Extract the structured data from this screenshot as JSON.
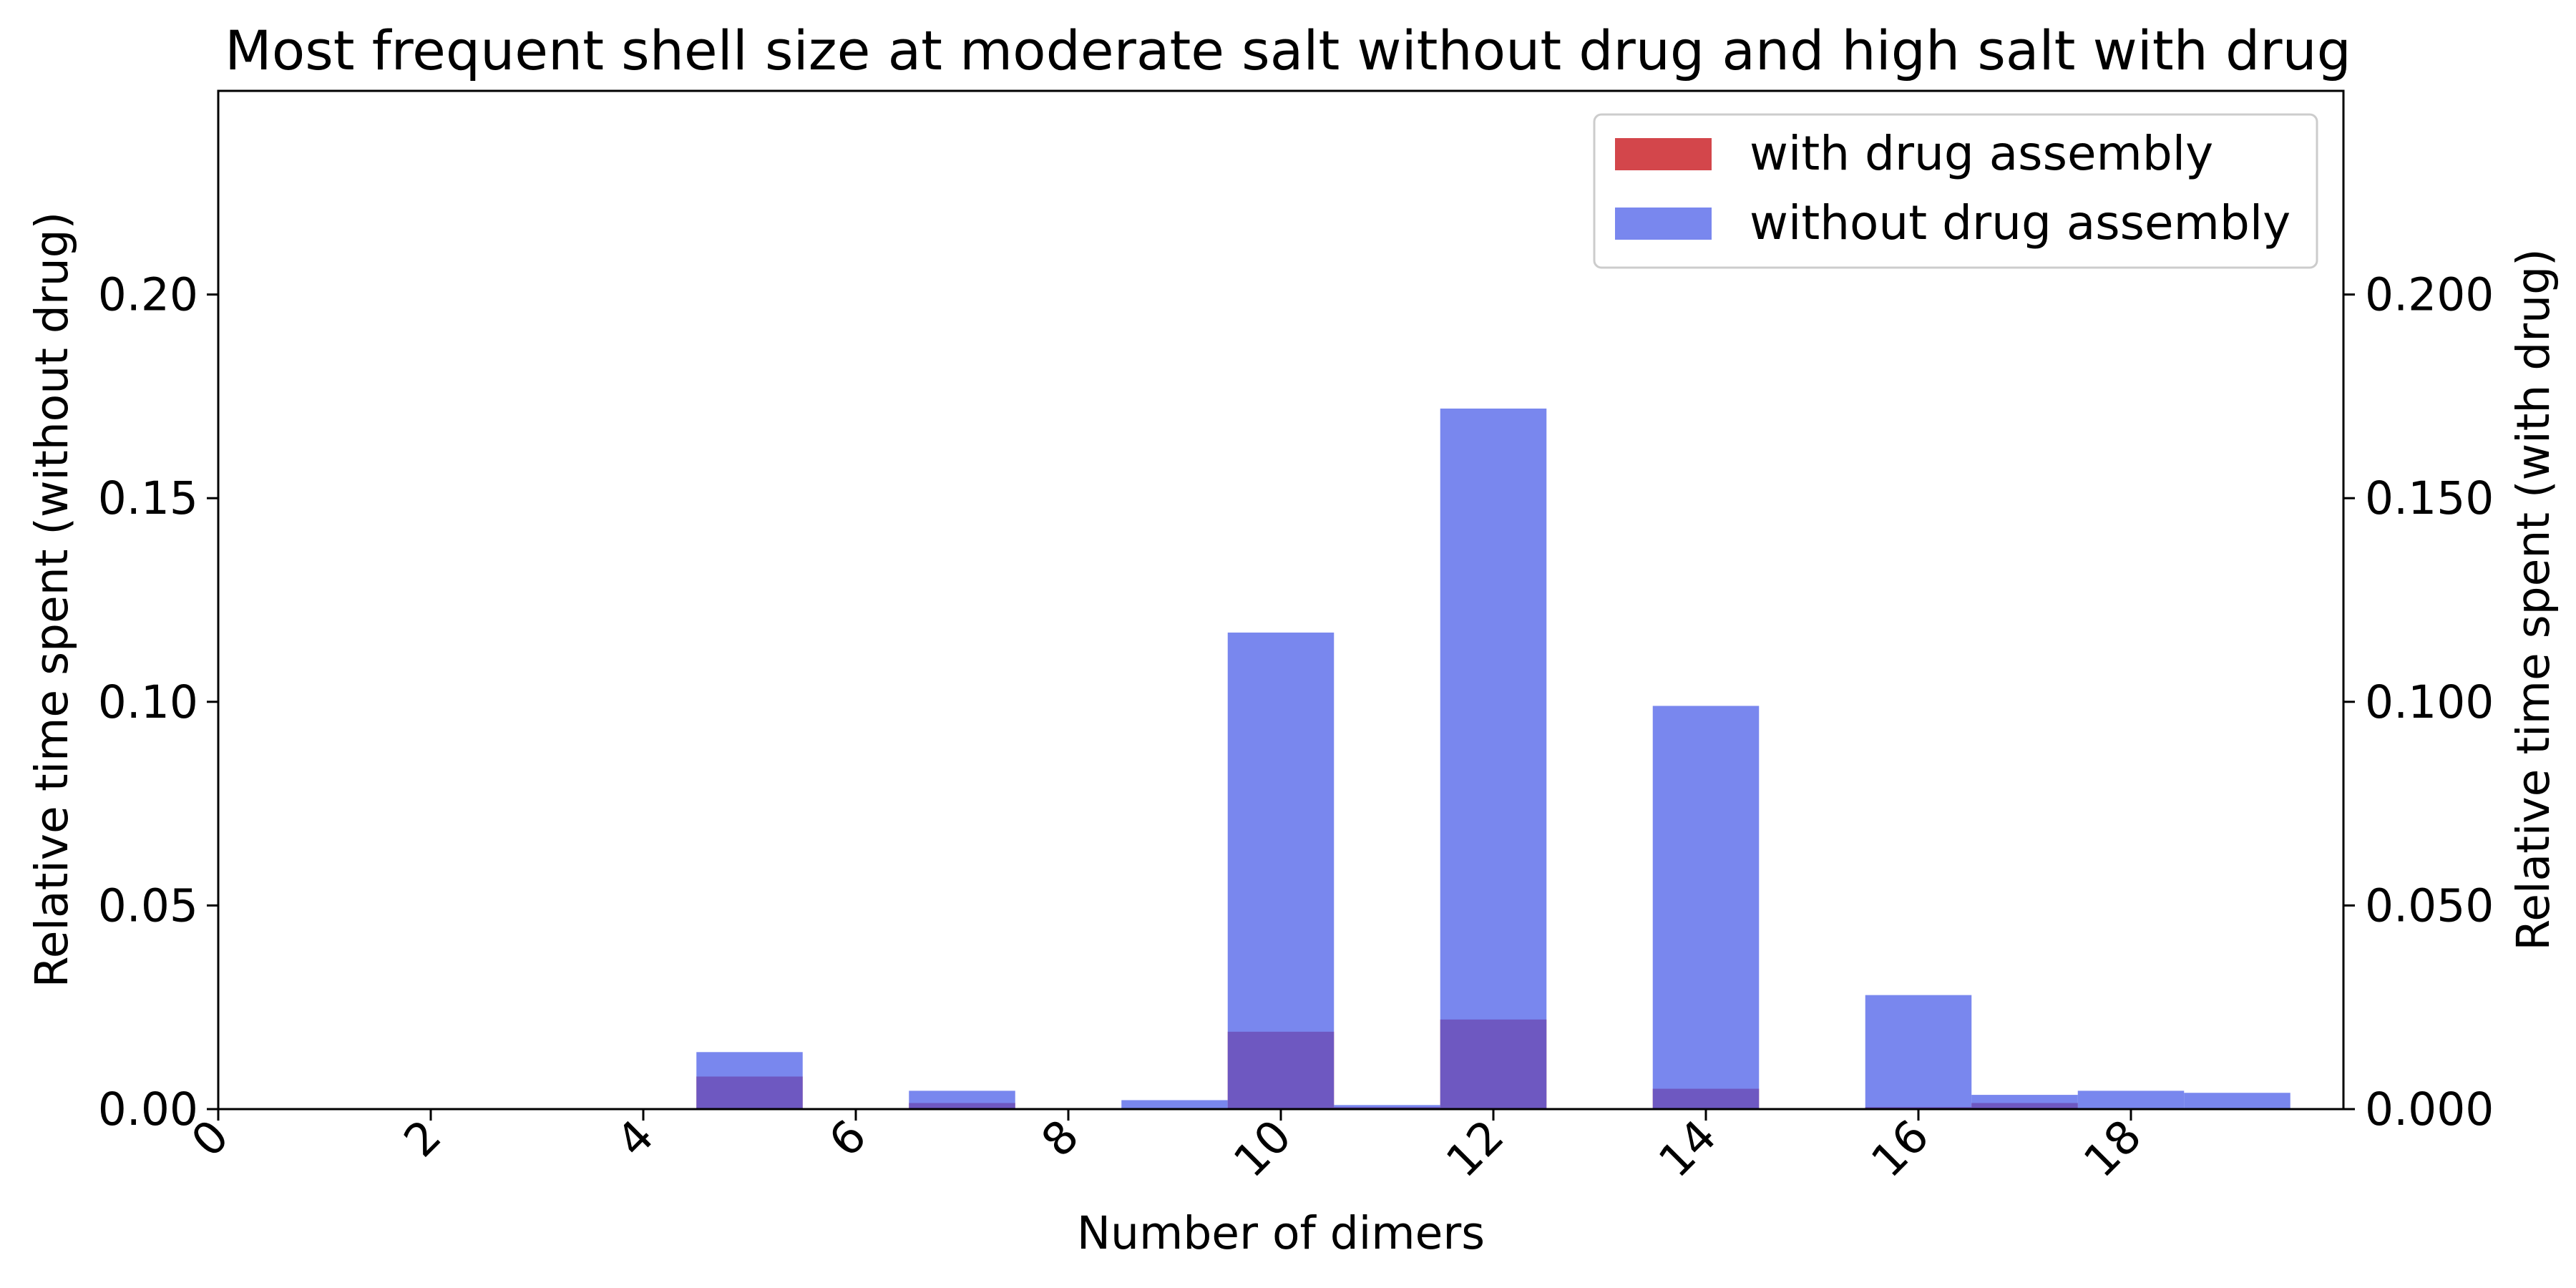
{
  "chart_data": {
    "type": "bar",
    "title": "Most frequent shell size at moderate salt without drug  and high salt with drug",
    "xlabel": "Number of dimers",
    "ylabel_left": "Relative time spent (without drug)",
    "ylabel_right": "Relative time spent (with drug)",
    "xlim": [
      0,
      20
    ],
    "ylim_left": [
      0,
      0.25
    ],
    "ylim_right": [
      0,
      0.25
    ],
    "xticks": [
      "0",
      "2",
      "4",
      "6",
      "8",
      "10",
      "12",
      "14",
      "16",
      "18"
    ],
    "yticks_left": [
      "0.00",
      "0.05",
      "0.10",
      "0.15",
      "0.20"
    ],
    "yticks_right": [
      "0.000",
      "0.050",
      "0.100",
      "0.150",
      "0.200"
    ],
    "legend_position": "top-right",
    "grid": false,
    "bar_width": 1,
    "categories": [
      5,
      6,
      7,
      8,
      9,
      10,
      11,
      12,
      13,
      14,
      15,
      16,
      17,
      18,
      19
    ],
    "series": [
      {
        "name": "with drug assembly",
        "axis": "right",
        "color": "#c8181e",
        "values": [
          0.008,
          0,
          0.0015,
          0,
          0,
          0.019,
          0.0005,
          0.022,
          0,
          0.005,
          0,
          0.0005,
          0.0015,
          0,
          0
        ]
      },
      {
        "name": "without drug assembly",
        "axis": "left",
        "color": "#4c5fe8",
        "values": [
          0.014,
          0,
          0.0045,
          0,
          0.0022,
          0.117,
          0.001,
          0.172,
          0,
          0.099,
          0,
          0.028,
          0.0035,
          0.0045,
          0.004
        ]
      }
    ]
  }
}
